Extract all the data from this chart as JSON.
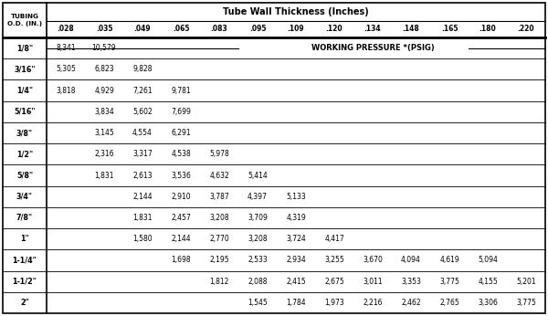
{
  "title": "Tube Wall Thickness (Inches)",
  "working_pressure_label": "WORKING PRESSURE *(PSIG)",
  "columns": [
    ".028",
    ".035",
    ".049",
    ".065",
    ".083",
    ".095",
    ".109",
    ".120",
    ".134",
    ".148",
    ".165",
    ".180",
    ".220"
  ],
  "rows": [
    {
      "od": "1/8\"",
      "values": [
        "8,341",
        "10,579",
        "",
        "",
        "",
        "",
        "",
        "",
        "",
        "",
        "",
        "",
        ""
      ]
    },
    {
      "od": "3/16\"",
      "values": [
        "5,305",
        "6,823",
        "9,828",
        "",
        "",
        "",
        "",
        "",
        "",
        "",
        "",
        "",
        ""
      ]
    },
    {
      "od": "1/4\"",
      "values": [
        "3,818",
        "4,929",
        "7,261",
        "9,781",
        "",
        "",
        "",
        "",
        "",
        "",
        "",
        "",
        ""
      ]
    },
    {
      "od": "5/16\"",
      "values": [
        "",
        "3,834",
        "5,602",
        "7,699",
        "",
        "",
        "",
        "",
        "",
        "",
        "",
        "",
        ""
      ]
    },
    {
      "od": "3/8\"",
      "values": [
        "",
        "3,145",
        "4,554",
        "6,291",
        "",
        "",
        "",
        "",
        "",
        "",
        "",
        "",
        ""
      ]
    },
    {
      "od": "1/2\"",
      "values": [
        "",
        "2,316",
        "3,317",
        "4,538",
        "5,978",
        "",
        "",
        "",
        "",
        "",
        "",
        "",
        ""
      ]
    },
    {
      "od": "5/8\"",
      "values": [
        "",
        "1,831",
        "2,613",
        "3,536",
        "4,632",
        "5,414",
        "",
        "",
        "",
        "",
        "",
        "",
        ""
      ]
    },
    {
      "od": "3/4\"",
      "values": [
        "",
        "",
        "2,144",
        "2,910",
        "3,787",
        "4,397",
        "5,133",
        "",
        "",
        "",
        "",
        "",
        ""
      ]
    },
    {
      "od": "7/8\"",
      "values": [
        "",
        "",
        "1,831",
        "2,457",
        "3,208",
        "3,709",
        "4,319",
        "",
        "",
        "",
        "",
        "",
        ""
      ]
    },
    {
      "od": "1\"",
      "values": [
        "",
        "",
        "1,580",
        "2,144",
        "2,770",
        "3,208",
        "3,724",
        "4,417",
        "",
        "",
        "",
        "",
        ""
      ]
    },
    {
      "od": "1-1/4\"",
      "values": [
        "",
        "",
        "",
        "1,698",
        "2,195",
        "2,533",
        "2,934",
        "3,255",
        "3,670",
        "4,094",
        "4,619",
        "5,094",
        ""
      ]
    },
    {
      "od": "1-1/2\"",
      "values": [
        "",
        "",
        "",
        "",
        "1,812",
        "2,088",
        "2,415",
        "2,675",
        "3,011",
        "3,353",
        "3,775",
        "4,155",
        "5,201"
      ]
    },
    {
      "od": "2\"",
      "values": [
        "",
        "",
        "",
        "",
        "",
        "1,545",
        "1,784",
        "1,973",
        "2,216",
        "2,462",
        "2,765",
        "3,306",
        "3,775"
      ]
    }
  ],
  "bg_color": "#ffffff",
  "text_color": "#000000"
}
